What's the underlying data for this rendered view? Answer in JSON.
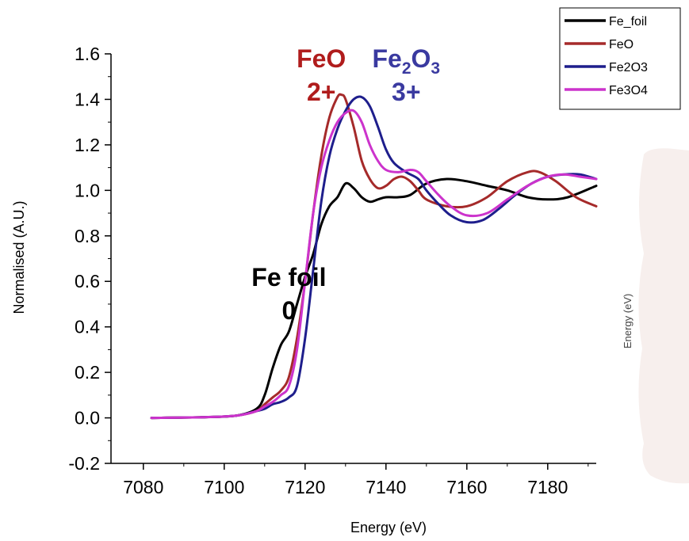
{
  "chart_data": {
    "type": "line",
    "xlabel": "Energy (eV)",
    "ylabel": "Normalised (A.U.)",
    "xlim": [
      7072,
      7192
    ],
    "ylim": [
      -0.2,
      1.6
    ],
    "xticks": [
      "7080",
      "7100",
      "7120",
      "7140",
      "7160",
      "7180"
    ],
    "yticks": [
      "-0.2",
      "0.0",
      "0.2",
      "0.4",
      "0.6",
      "0.8",
      "1.0",
      "1.2",
      "1.4",
      "1.6"
    ],
    "legend_position": "top-right",
    "series": [
      {
        "name": "Fe_foil",
        "color": "#000000",
        "points": [
          [
            7082,
            0.0
          ],
          [
            7095,
            0.003
          ],
          [
            7103,
            0.01
          ],
          [
            7108,
            0.04
          ],
          [
            7110,
            0.1
          ],
          [
            7112,
            0.22
          ],
          [
            7114,
            0.32
          ],
          [
            7116,
            0.38
          ],
          [
            7118,
            0.5
          ],
          [
            7120,
            0.62
          ],
          [
            7122,
            0.72
          ],
          [
            7124,
            0.85
          ],
          [
            7126,
            0.93
          ],
          [
            7128,
            0.97
          ],
          [
            7130,
            1.03
          ],
          [
            7132,
            1.01
          ],
          [
            7134,
            0.97
          ],
          [
            7136,
            0.95
          ],
          [
            7138,
            0.96
          ],
          [
            7140,
            0.97
          ],
          [
            7143,
            0.97
          ],
          [
            7146,
            0.98
          ],
          [
            7150,
            1.03
          ],
          [
            7155,
            1.05
          ],
          [
            7160,
            1.04
          ],
          [
            7165,
            1.02
          ],
          [
            7170,
            1.0
          ],
          [
            7175,
            0.97
          ],
          [
            7180,
            0.96
          ],
          [
            7185,
            0.97
          ],
          [
            7192,
            1.02
          ]
        ]
      },
      {
        "name": "FeO",
        "color": "#a52a2a",
        "points": [
          [
            7082,
            0.0
          ],
          [
            7095,
            0.003
          ],
          [
            7103,
            0.01
          ],
          [
            7108,
            0.03
          ],
          [
            7110,
            0.06
          ],
          [
            7112,
            0.09
          ],
          [
            7114,
            0.12
          ],
          [
            7116,
            0.18
          ],
          [
            7118,
            0.35
          ],
          [
            7120,
            0.6
          ],
          [
            7122,
            0.9
          ],
          [
            7124,
            1.15
          ],
          [
            7126,
            1.32
          ],
          [
            7128,
            1.41
          ],
          [
            7129,
            1.42
          ],
          [
            7130,
            1.4
          ],
          [
            7132,
            1.28
          ],
          [
            7134,
            1.13
          ],
          [
            7136,
            1.05
          ],
          [
            7138,
            1.01
          ],
          [
            7140,
            1.02
          ],
          [
            7142,
            1.05
          ],
          [
            7144,
            1.06
          ],
          [
            7146,
            1.04
          ],
          [
            7148,
            1.0
          ],
          [
            7150,
            0.96
          ],
          [
            7155,
            0.93
          ],
          [
            7160,
            0.93
          ],
          [
            7165,
            0.97
          ],
          [
            7170,
            1.04
          ],
          [
            7175,
            1.08
          ],
          [
            7178,
            1.08
          ],
          [
            7182,
            1.04
          ],
          [
            7187,
            0.97
          ],
          [
            7192,
            0.93
          ]
        ]
      },
      {
        "name": "Fe2O3",
        "color": "#1e1e8c",
        "points": [
          [
            7082,
            0.0
          ],
          [
            7095,
            0.003
          ],
          [
            7103,
            0.01
          ],
          [
            7108,
            0.03
          ],
          [
            7110,
            0.04
          ],
          [
            7112,
            0.06
          ],
          [
            7114,
            0.07
          ],
          [
            7116,
            0.09
          ],
          [
            7118,
            0.14
          ],
          [
            7120,
            0.35
          ],
          [
            7122,
            0.65
          ],
          [
            7124,
            0.95
          ],
          [
            7126,
            1.15
          ],
          [
            7128,
            1.27
          ],
          [
            7130,
            1.35
          ],
          [
            7132,
            1.4
          ],
          [
            7134,
            1.41
          ],
          [
            7136,
            1.37
          ],
          [
            7138,
            1.28
          ],
          [
            7140,
            1.18
          ],
          [
            7142,
            1.12
          ],
          [
            7145,
            1.08
          ],
          [
            7148,
            1.05
          ],
          [
            7150,
            1.0
          ],
          [
            7153,
            0.94
          ],
          [
            7156,
            0.89
          ],
          [
            7160,
            0.86
          ],
          [
            7164,
            0.87
          ],
          [
            7168,
            0.92
          ],
          [
            7172,
            0.98
          ],
          [
            7176,
            1.03
          ],
          [
            7180,
            1.06
          ],
          [
            7184,
            1.07
          ],
          [
            7188,
            1.07
          ],
          [
            7192,
            1.05
          ]
        ]
      },
      {
        "name": "Fe3O4",
        "color": "#cc33cc",
        "points": [
          [
            7082,
            0.0
          ],
          [
            7095,
            0.003
          ],
          [
            7103,
            0.01
          ],
          [
            7108,
            0.03
          ],
          [
            7110,
            0.05
          ],
          [
            7112,
            0.07
          ],
          [
            7114,
            0.1
          ],
          [
            7116,
            0.14
          ],
          [
            7118,
            0.3
          ],
          [
            7120,
            0.6
          ],
          [
            7122,
            0.9
          ],
          [
            7124,
            1.1
          ],
          [
            7126,
            1.22
          ],
          [
            7128,
            1.3
          ],
          [
            7130,
            1.34
          ],
          [
            7132,
            1.35
          ],
          [
            7134,
            1.3
          ],
          [
            7136,
            1.2
          ],
          [
            7138,
            1.13
          ],
          [
            7140,
            1.09
          ],
          [
            7143,
            1.08
          ],
          [
            7146,
            1.09
          ],
          [
            7148,
            1.08
          ],
          [
            7150,
            1.04
          ],
          [
            7153,
            0.98
          ],
          [
            7156,
            0.93
          ],
          [
            7160,
            0.89
          ],
          [
            7165,
            0.9
          ],
          [
            7170,
            0.96
          ],
          [
            7175,
            1.02
          ],
          [
            7180,
            1.06
          ],
          [
            7184,
            1.07
          ],
          [
            7188,
            1.06
          ],
          [
            7192,
            1.05
          ]
        ]
      }
    ],
    "annotations": [
      {
        "id": "fe-foil",
        "line1": "Fe foil",
        "line2": "0",
        "color": "#000000",
        "x": 7116,
        "y": 0.58
      },
      {
        "id": "feo",
        "line1": "FeO",
        "line2": "2+",
        "color": "#b01c1c",
        "x": 7124,
        "y": 1.54
      },
      {
        "id": "fe2o3",
        "line1_parts": [
          "Fe",
          "2",
          "O",
          "3"
        ],
        "line2": "3+",
        "color": "#3a3aa0",
        "x": 7145,
        "y": 1.54
      }
    ],
    "faint_label": "Energy (eV)"
  }
}
